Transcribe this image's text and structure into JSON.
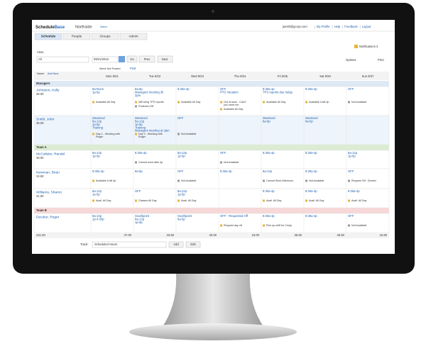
{
  "header": {
    "brand_a": "Schedule",
    "brand_b": "Base",
    "location": "Northside",
    "select": "Select",
    "user": "jsmith@gcorp.com",
    "links": [
      "My Profile",
      "Help",
      "Feedback",
      "Logout"
    ]
  },
  "tabs": [
    "Schedule",
    "People",
    "Groups",
    "Admin"
  ],
  "toolbar": {
    "notifications": "Notifications 3",
    "view_label": "View:",
    "view_value": "All",
    "date": "09/21/2015",
    "go": "Go",
    "prev": "Prev",
    "next": "Next",
    "options": "Options",
    "print": "Print",
    "week_status": "Week Not Posted",
    "post": "Post"
  },
  "table": {
    "name_header": "Name",
    "add_new": "Add New",
    "days": [
      "Mon 9/21",
      "Tue 9/22",
      "Wed 9/23",
      "Thu 9/24",
      "Fri 9/25",
      "Sat 9/26",
      "Sun 9/27"
    ],
    "groups": [
      {
        "name": "Managers",
        "rows": [
          {
            "name": "Johnston, Kelly",
            "hours": "36.00",
            "cells": [
              {
                "shifts": [
                  "8a-Noon",
                  "1p-5p"
                ],
                "notes": [
                  "Available All Day"
                ]
              },
              {
                "shifts": [
                  "8a-5p",
                  "Managers meeting @",
                  "2pm"
                ],
                "notes": [
                  "Will bring TPS reports",
                  "Preferred Off"
                ]
              },
              {
                "shifts": [
                  "8:30a-4p"
                ],
                "notes": [
                  "Available All Day"
                ]
              },
              {
                "shifts": [
                  "OFF",
                  "PTO Vacation"
                ],
                "notes": [
                  "Out of town - Call if you need me.",
                  "Available All Day"
                ]
              },
              {
                "shifts": [
                  "8:30a-4p",
                  "TPS reports due today."
                ],
                "notes": [
                  "Available All Day"
                ]
              },
              {
                "shifts": [
                  "8:30a-4p"
                ],
                "notes": [
                  "Available Until 4p"
                ]
              },
              {
                "shifts": [
                  "OFF"
                ],
                "notes": [
                  "Not Available"
                ]
              }
            ]
          },
          {
            "name": "Smith, John",
            "hours": "35.00",
            "cells": [
              {
                "shifts": [
                  "Weekend",
                  "8a-12p",
                  "1p-5p",
                  "Training"
                ],
                "notes": [
                  "Day 1 - Working with Roger"
                ]
              },
              {
                "shifts": [
                  "Weekend",
                  "8a-12p",
                  "1p-5p",
                  "Training",
                  "Managers meeting at 2pm"
                ],
                "notes": [
                  "Day 2 - Working with Roger"
                ]
              },
              {
                "shifts": [
                  "OFF"
                ],
                "notes": [
                  "Not Available"
                ]
              },
              {
                "shifts": [],
                "notes": []
              },
              {
                "shifts": [
                  "Weekend",
                  "8a-5p"
                ],
                "notes": []
              },
              {
                "shifts": [
                  "Weekend",
                  "8a-5p"
                ],
                "notes": []
              },
              {
                "shifts": [],
                "notes": []
              }
            ]
          }
        ]
      },
      {
        "name": "Team A",
        "rows": [
          {
            "name": "McCalister, Randel",
            "hours": "36.00",
            "cells": [
              {
                "shifts": [
                  "8a-12p",
                  "1p-5p"
                ],
                "notes": []
              },
              {
                "shifts": [
                  "8:30a-4p"
                ],
                "notes": [
                  "Cannot work after 4p"
                ]
              },
              {
                "shifts": [
                  "8a-12p",
                  "1p-5p"
                ],
                "notes": []
              },
              {
                "shifts": [
                  "OFF"
                ],
                "notes": [
                  "Not Available"
                ]
              },
              {
                "shifts": [
                  "8:30a-4p"
                ],
                "notes": []
              },
              {
                "shifts": [
                  "8:30a-4p"
                ],
                "notes": []
              },
              {
                "shifts": [
                  "8a-12p",
                  "1p-5p"
                ],
                "notes": []
              }
            ]
          },
          {
            "name": "Newman, Brian",
            "hours": "34.50",
            "cells": [
              {
                "shifts": [
                  "8:30a-4p"
                ],
                "notes": [
                  "Available Until 4p"
                ]
              },
              {
                "shifts": [
                  "8a-5p"
                ],
                "notes": []
              },
              {
                "shifts": [
                  "OFF"
                ],
                "notes": [
                  "Not Available"
                ]
              },
              {
                "shifts": [
                  "8:30a-4p"
                ],
                "notes": []
              },
              {
                "shifts": [
                  "8a-12p"
                ],
                "notes": [
                  "Cannot Work Afternoon"
                ]
              },
              {
                "shifts": [
                  "8:30a-4p"
                ],
                "notes": [
                  "Not Available"
                ]
              },
              {
                "shifts": [
                  "OFF"
                ],
                "notes": [
                  "Request Off - Denied"
                ]
              }
            ]
          },
          {
            "name": "Williams, Sharon",
            "hours": "31.00",
            "cells": [
              {
                "shifts": [
                  "8a-12p",
                  "1p-5p"
                ],
                "notes": [
                  "Avail. All Day"
                ]
              },
              {
                "shifts": [
                  "OFF"
                ],
                "notes": [
                  "Classes All Day"
                ]
              },
              {
                "shifts": [
                  "8a-12p",
                  "1p-5p"
                ],
                "notes": [
                  "Avail. All Day"
                ]
              },
              {
                "shifts": [],
                "notes": []
              },
              {
                "shifts": [
                  "8:30a-4p"
                ],
                "notes": [
                  "Avail. All Day"
                ]
              },
              {
                "shifts": [
                  "8:30a-4p"
                ],
                "notes": [
                  "Avail. All Day"
                ]
              },
              {
                "shifts": [
                  "8:30a-4p"
                ],
                "notes": [
                  "Avail. All Day"
                ]
              }
            ]
          }
        ]
      },
      {
        "name": "Team B",
        "rows": [
          {
            "name": "Decatur, Roger",
            "cells": [
              {
                "shifts": [
                  "8a-12p",
                  "1p-4:30p"
                ],
                "notes": []
              },
              {
                "shifts": [
                  "Southpoint",
                  "8a-12p",
                  "1p-5p"
                ],
                "notes": []
              },
              {
                "shifts": [
                  "Southpoint",
                  "8a-5p"
                ],
                "notes": []
              },
              {
                "shifts": [
                  "OFF - Requested Off"
                ],
                "notes": [
                  "Request day off"
                ]
              },
              {
                "shifts": [
                  "8:30a-4p"
                ],
                "notes": [
                  "Pick up shift for Cindy."
                ]
              },
              {
                "shifts": [
                  "8:30a-4p"
                ],
                "notes": []
              },
              {
                "shifts": [
                  "OFF"
                ],
                "notes": [
                  "Not Available"
                ]
              }
            ]
          }
        ]
      }
    ],
    "totals": [
      "241.00",
      "47.00",
      "33.50",
      "40.00",
      "23.00",
      "35.50",
      "46.50",
      "15.50"
    ]
  },
  "footer": {
    "track_label": "Track:",
    "track_value": "Scheduled Hours",
    "add": "Add",
    "edit": "Edit"
  }
}
